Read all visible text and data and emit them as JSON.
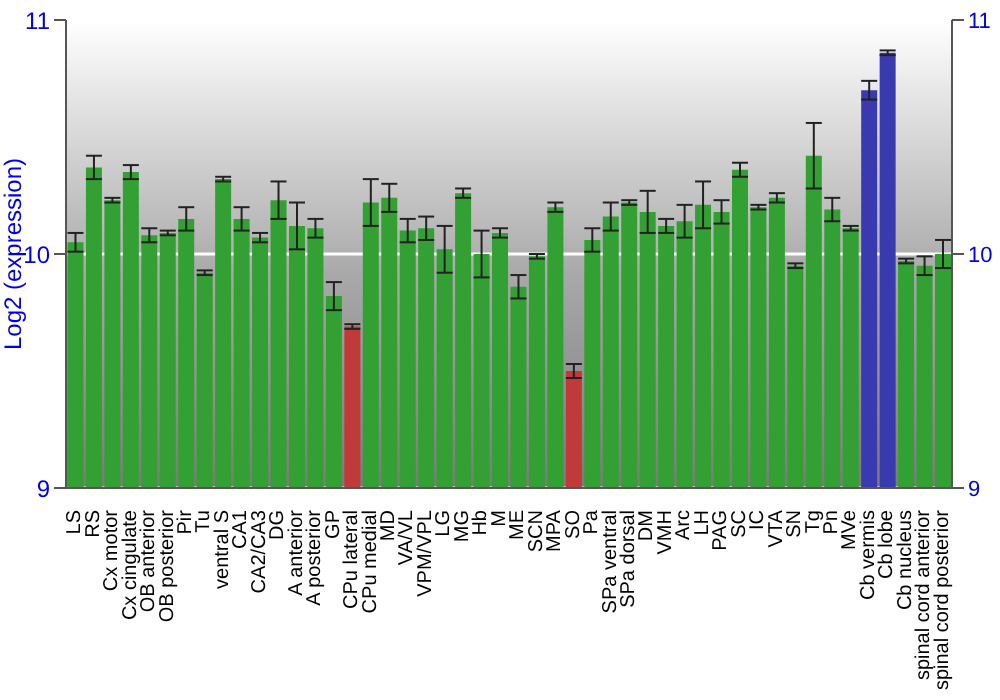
{
  "chart_data": {
    "type": "bar",
    "ylabel": "Log2 (expression)",
    "categories": [
      "LS",
      "RS",
      "Cx motor",
      "Cx cingulate",
      "OB anterior",
      "OB posterior",
      "Pir",
      "Tu",
      "ventral S",
      "CA1",
      "CA2/CA3",
      "DG",
      "A anterior",
      "A posterior",
      "GP",
      "CPu lateral",
      "CPu medial",
      "MD",
      "VA/VL",
      "VPM/VPL",
      "LG",
      "MG",
      "Hb",
      "M",
      "ME",
      "SCN",
      "MPA",
      "SO",
      "Pa",
      "SPa ventral",
      "SPa dorsal",
      "DM",
      "VMH",
      "Arc",
      "LH",
      "PAG",
      "SC",
      "IC",
      "VTA",
      "SN",
      "Tg",
      "Pn",
      "MVe",
      "Cb vermis",
      "Cb lobe",
      "Cb nucleus",
      "spinal cord anterior",
      "spinal cord posterior"
    ],
    "values": [
      10.05,
      10.37,
      10.23,
      10.35,
      10.08,
      10.09,
      10.15,
      9.92,
      10.32,
      10.15,
      10.07,
      10.23,
      10.12,
      10.11,
      9.82,
      9.69,
      10.22,
      10.24,
      10.1,
      10.11,
      10.02,
      10.26,
      10.0,
      10.09,
      9.86,
      9.99,
      10.2,
      9.5,
      10.06,
      10.16,
      10.22,
      10.18,
      10.12,
      10.14,
      10.21,
      10.18,
      10.36,
      10.2,
      10.24,
      9.95,
      10.42,
      10.19,
      10.11,
      10.7,
      10.86,
      9.97,
      9.95,
      10.0
    ],
    "errors": [
      0.04,
      0.05,
      0.01,
      0.03,
      0.03,
      0.01,
      0.05,
      0.01,
      0.01,
      0.05,
      0.02,
      0.08,
      0.1,
      0.04,
      0.06,
      0.01,
      0.1,
      0.06,
      0.05,
      0.05,
      0.1,
      0.02,
      0.1,
      0.02,
      0.05,
      0.01,
      0.02,
      0.03,
      0.05,
      0.06,
      0.01,
      0.09,
      0.03,
      0.07,
      0.1,
      0.05,
      0.03,
      0.01,
      0.02,
      0.01,
      0.14,
      0.05,
      0.01,
      0.04,
      0.01,
      0.01,
      0.04,
      0.06
    ],
    "colors": [
      "#33a033",
      "#33a033",
      "#33a033",
      "#33a033",
      "#33a033",
      "#33a033",
      "#33a033",
      "#33a033",
      "#33a033",
      "#33a033",
      "#33a033",
      "#33a033",
      "#33a033",
      "#33a033",
      "#33a033",
      "#c03a3a",
      "#33a033",
      "#33a033",
      "#33a033",
      "#33a033",
      "#33a033",
      "#33a033",
      "#33a033",
      "#33a033",
      "#33a033",
      "#33a033",
      "#33a033",
      "#c03a3a",
      "#33a033",
      "#33a033",
      "#33a033",
      "#33a033",
      "#33a033",
      "#33a033",
      "#33a033",
      "#33a033",
      "#33a033",
      "#33a033",
      "#33a033",
      "#33a033",
      "#33a033",
      "#33a033",
      "#33a033",
      "#3a3ab0",
      "#3a3ab0",
      "#33a033",
      "#33a033",
      "#33a033"
    ],
    "ylim": [
      9,
      11
    ],
    "yticks": [
      9,
      10,
      11
    ],
    "y2lim": [
      9,
      11
    ],
    "y2ticks": [
      9,
      10,
      11
    ],
    "grid": "y"
  }
}
